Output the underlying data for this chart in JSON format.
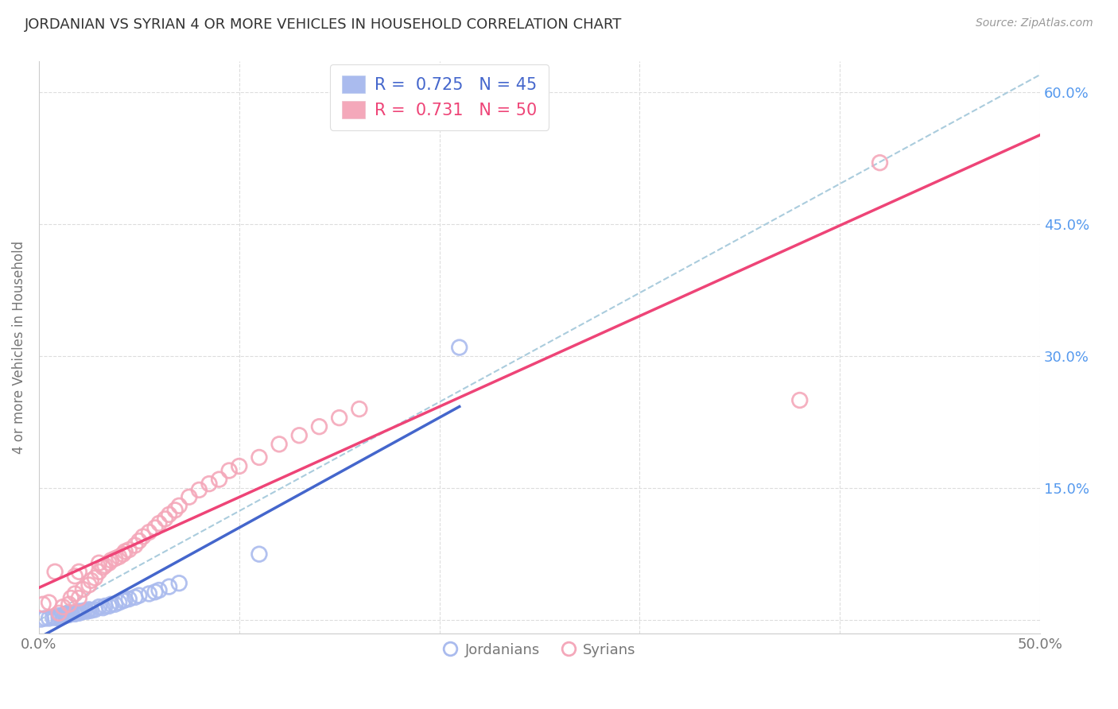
{
  "title": "JORDANIAN VS SYRIAN 4 OR MORE VEHICLES IN HOUSEHOLD CORRELATION CHART",
  "source": "Source: ZipAtlas.com",
  "ylabel": "4 or more Vehicles in Household",
  "xlim": [
    0.0,
    0.5
  ],
  "ylim": [
    -0.015,
    0.635
  ],
  "jordanian_R": 0.725,
  "jordanian_N": 45,
  "syrian_R": 0.731,
  "syrian_N": 50,
  "jordanian_color": "#AABBEE",
  "syrian_color": "#F4A8BA",
  "jordanian_line_color": "#4466CC",
  "syrian_line_color": "#EE4477",
  "diagonal_color": "#AACCDD",
  "legend_label_jordanians": "Jordanians",
  "legend_label_syrians": "Syrians",
  "background_color": "#FFFFFF",
  "grid_color": "#DDDDDD",
  "title_color": "#333333",
  "axis_label_color": "#777777",
  "right_tick_color": "#5599EE",
  "legend_text_color_j": "#4466CC",
  "legend_text_color_s": "#EE4477",
  "jordanian_x": [
    0.001,
    0.003,
    0.005,
    0.007,
    0.008,
    0.01,
    0.01,
    0.011,
    0.012,
    0.013,
    0.013,
    0.014,
    0.015,
    0.016,
    0.016,
    0.018,
    0.019,
    0.02,
    0.02,
    0.021,
    0.022,
    0.023,
    0.024,
    0.025,
    0.026,
    0.028,
    0.03,
    0.032,
    0.033,
    0.035,
    0.036,
    0.038,
    0.04,
    0.042,
    0.043,
    0.045,
    0.048,
    0.05,
    0.055,
    0.058,
    0.06,
    0.065,
    0.07,
    0.11,
    0.21
  ],
  "jordanian_y": [
    0.001,
    0.002,
    0.002,
    0.003,
    0.003,
    0.002,
    0.005,
    0.004,
    0.004,
    0.005,
    0.007,
    0.006,
    0.006,
    0.007,
    0.008,
    0.007,
    0.008,
    0.008,
    0.01,
    0.009,
    0.01,
    0.011,
    0.01,
    0.012,
    0.011,
    0.012,
    0.015,
    0.014,
    0.016,
    0.016,
    0.018,
    0.018,
    0.02,
    0.022,
    0.023,
    0.024,
    0.026,
    0.028,
    0.03,
    0.032,
    0.034,
    0.038,
    0.042,
    0.075,
    0.31
  ],
  "syrian_x": [
    0.002,
    0.005,
    0.008,
    0.01,
    0.012,
    0.015,
    0.016,
    0.018,
    0.018,
    0.02,
    0.02,
    0.022,
    0.025,
    0.026,
    0.028,
    0.03,
    0.03,
    0.032,
    0.033,
    0.035,
    0.036,
    0.038,
    0.04,
    0.042,
    0.043,
    0.045,
    0.048,
    0.05,
    0.052,
    0.055,
    0.058,
    0.06,
    0.063,
    0.065,
    0.068,
    0.07,
    0.075,
    0.08,
    0.085,
    0.09,
    0.095,
    0.1,
    0.11,
    0.12,
    0.13,
    0.14,
    0.15,
    0.16,
    0.38,
    0.42
  ],
  "syrian_y": [
    0.018,
    0.02,
    0.055,
    0.008,
    0.015,
    0.018,
    0.025,
    0.05,
    0.03,
    0.025,
    0.055,
    0.035,
    0.04,
    0.045,
    0.048,
    0.055,
    0.065,
    0.06,
    0.062,
    0.065,
    0.068,
    0.07,
    0.072,
    0.075,
    0.078,
    0.08,
    0.085,
    0.09,
    0.095,
    0.1,
    0.105,
    0.11,
    0.115,
    0.12,
    0.125,
    0.13,
    0.14,
    0.148,
    0.155,
    0.16,
    0.17,
    0.175,
    0.185,
    0.2,
    0.21,
    0.22,
    0.23,
    0.24,
    0.25,
    0.52
  ],
  "yticks": [
    0.0,
    0.15,
    0.3,
    0.45,
    0.6
  ],
  "ytick_right_labels": [
    "",
    "15.0%",
    "30.0%",
    "45.0%",
    "60.0%"
  ],
  "xticks": [
    0.0,
    0.1,
    0.2,
    0.3,
    0.4,
    0.5
  ],
  "xtick_labels": [
    "0.0%",
    "",
    "",
    "",
    "",
    "50.0%"
  ]
}
